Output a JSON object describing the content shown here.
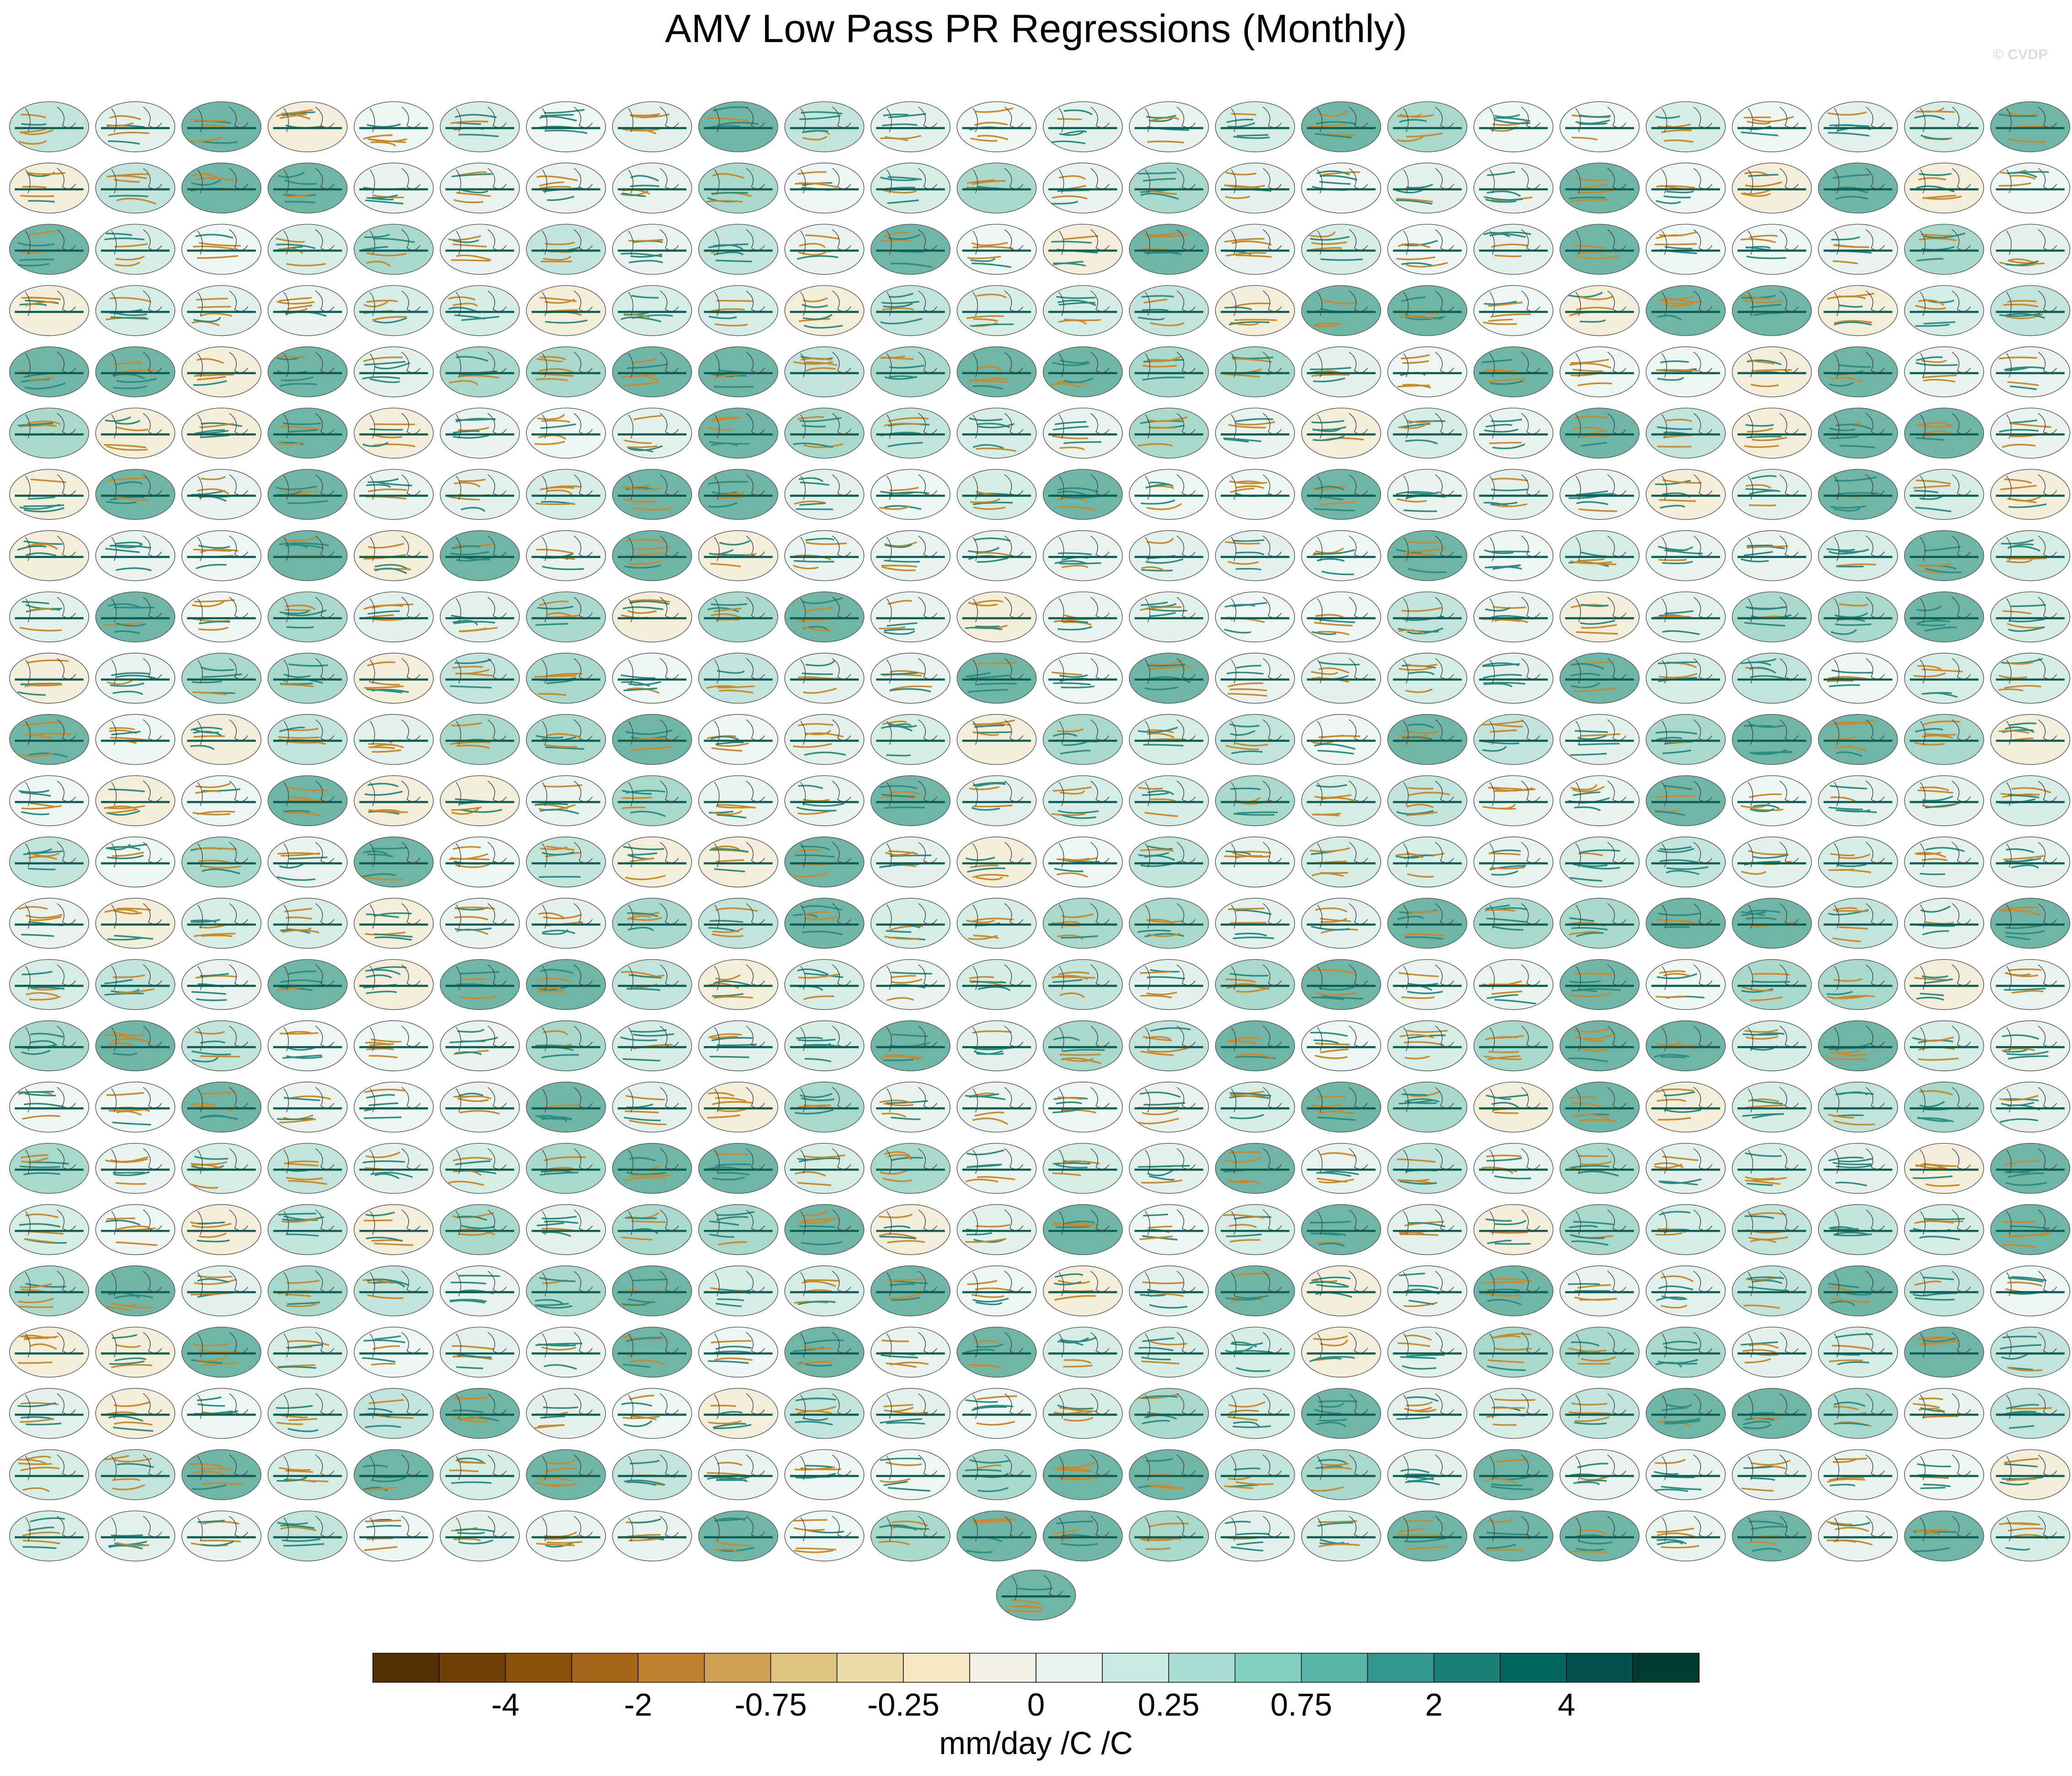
{
  "title": "AMV Low Pass PR Regressions (Monthly)",
  "watermark": "© CVDP",
  "colorbar": {
    "colors": [
      "#543005",
      "#6f3f08",
      "#8c510a",
      "#a6661b",
      "#bf812d",
      "#d0a155",
      "#dfc27d",
      "#ecd9a8",
      "#f6e8c3",
      "#f5f0e6",
      "#e9f2f0",
      "#c7eae5",
      "#a8ddd4",
      "#80cdc1",
      "#5ab4a6",
      "#35978f",
      "#1d7f77",
      "#01665e",
      "#02514a",
      "#003c30"
    ],
    "labels": [
      "-4",
      "-2",
      "-0.75",
      "-0.25",
      "0",
      "0.25",
      "0.75",
      "2",
      "4"
    ],
    "unit": "mm/day /C /C"
  }
}
